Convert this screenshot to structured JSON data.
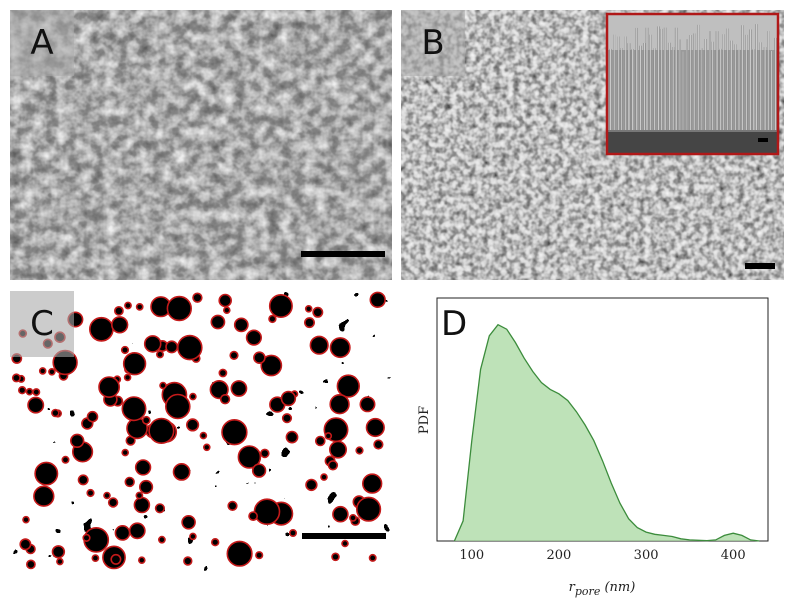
{
  "panels": {
    "a": {
      "label": "A"
    },
    "b": {
      "label": "B"
    },
    "c": {
      "label": "C"
    },
    "d": {
      "label": "D"
    }
  },
  "colors": {
    "sem_dark": "#262626",
    "sem_light": "#c8c8c8",
    "inset_border": "#b01818",
    "pore_circle": "#c41a1a",
    "kde_fill": "#a8d8a0",
    "kde_line": "#3c8c3c"
  },
  "chart_data": {
    "type": "area",
    "title": "",
    "xlabel_main": "r",
    "xlabel_sub": "pore",
    "xlabel_unit": "(nm)",
    "ylabel": "PDF",
    "xlim": [
      60,
      440
    ],
    "ylim": [
      0,
      1.0
    ],
    "xticks": [
      "100",
      "200",
      "300",
      "400"
    ],
    "xtick_values": [
      100,
      200,
      300,
      400
    ],
    "series": [
      {
        "x": [
          80,
          90,
          100,
          110,
          120,
          130,
          140,
          150,
          160,
          170,
          180,
          190,
          200,
          210,
          220,
          230,
          240,
          250,
          260,
          270,
          280,
          290,
          300,
          310,
          320,
          330,
          340,
          350,
          360,
          370,
          380,
          390,
          400,
          410,
          420,
          430
        ],
        "values": [
          0.0,
          0.09,
          0.45,
          0.77,
          0.92,
          0.97,
          0.95,
          0.89,
          0.82,
          0.76,
          0.71,
          0.68,
          0.66,
          0.63,
          0.58,
          0.52,
          0.45,
          0.36,
          0.26,
          0.17,
          0.1,
          0.06,
          0.04,
          0.03,
          0.025,
          0.02,
          0.01,
          0.005,
          0.003,
          0.002,
          0.005,
          0.025,
          0.035,
          0.025,
          0.005,
          0.0
        ]
      }
    ]
  }
}
